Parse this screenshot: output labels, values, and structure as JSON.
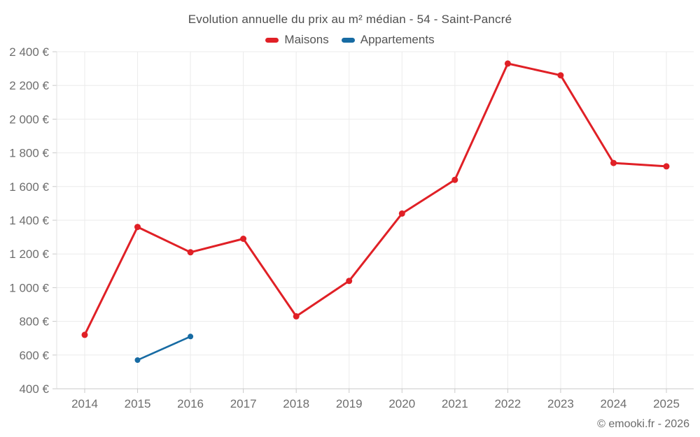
{
  "header": {
    "title": "Evolution annuelle du prix au m² médian - 54 - Saint-Pancré"
  },
  "chart_data": {
    "type": "line",
    "title": "Evolution annuelle du prix au m² médian - 54 - Saint-Pancré",
    "categories": [
      "2014",
      "2015",
      "2016",
      "2017",
      "2018",
      "2019",
      "2020",
      "2021",
      "2022",
      "2023",
      "2024",
      "2025"
    ],
    "series": [
      {
        "name": "Maisons",
        "color": "#e02026",
        "values": [
          720,
          1360,
          1210,
          1290,
          830,
          1040,
          1440,
          1640,
          2330,
          2260,
          1740,
          1720
        ]
      },
      {
        "name": "Appartements",
        "color": "#176ba3",
        "values": [
          null,
          570,
          710,
          null,
          null,
          null,
          null,
          null,
          null,
          null,
          null,
          null
        ]
      }
    ],
    "xlabel": "",
    "ylabel": "",
    "ylim": [
      400,
      2400
    ],
    "ytick_step": 200,
    "ytick_labels": [
      "400 €",
      "600 €",
      "800 €",
      "1 000 €",
      "1 200 €",
      "1 400 €",
      "1 600 €",
      "1 800 €",
      "2 000 €",
      "2 200 €",
      "2 400 €"
    ],
    "grid": true,
    "legend_position": "top",
    "currency": "€"
  },
  "footer": {
    "credit": "© emooki.fr - 2026"
  },
  "colors": {
    "grid": "#ebebeb",
    "axis": "#c9c9c9",
    "left_border": "#e2e2e2",
    "tick": "#c9c9c9",
    "axis_text": "#6e6e6e"
  }
}
